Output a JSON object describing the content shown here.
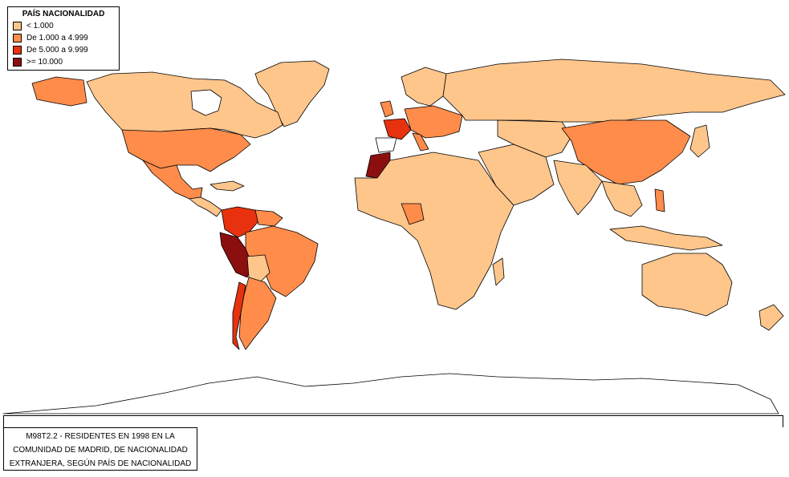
{
  "legend": {
    "title": "PAÍS NACIONALIDAD",
    "items": [
      {
        "label": "< 1.000",
        "color": "#FFC68C"
      },
      {
        "label": "De 1.000 a 4.999",
        "color": "#FF8C4A"
      },
      {
        "label": "De 5.000 a 9.999",
        "color": "#E8320F"
      },
      {
        "label": ">= 10.000",
        "color": "#8C0F0F"
      }
    ]
  },
  "caption": {
    "line1": "M98T2.2 - RESIDENTES EN 1998 EN LA",
    "line2": "COMUNIDAD DE MADRID, DE NACIONALIDAD",
    "line3": "EXTRANJERA, SEGÚN PAÍS DE NACIONALIDAD"
  },
  "colors": {
    "low": "#FFC68C",
    "mid": "#FF8C4A",
    "high": "#E8320F",
    "top": "#8C0F0F",
    "none": "#FFFFFF",
    "border": "#000000"
  }
}
